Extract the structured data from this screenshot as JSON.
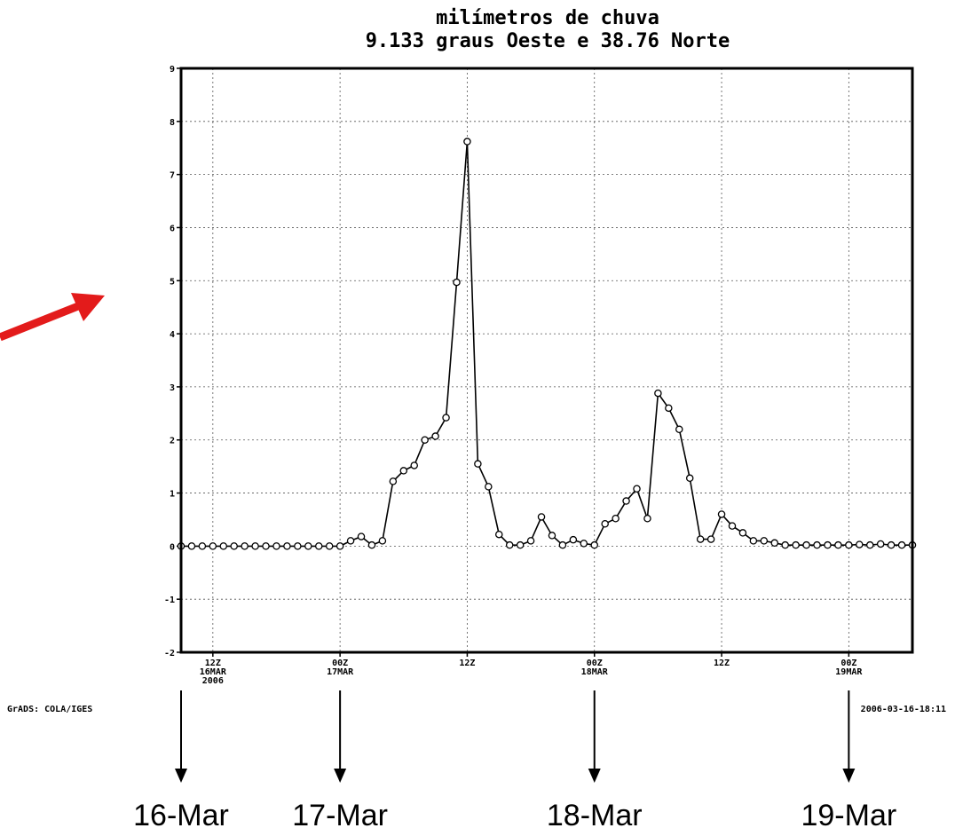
{
  "chart_data": {
    "type": "line",
    "title": [
      "milímetros de chuva",
      "9.133 graus Oeste  e  38.76 Norte"
    ],
    "ylim": [
      -2,
      9
    ],
    "yticks": [
      "-2",
      "-1",
      "0",
      "1",
      "2",
      "3",
      "4",
      "5",
      "6",
      "7",
      "8",
      "9"
    ],
    "xlim_hours": [
      -3,
      66
    ],
    "xticks": [
      {
        "hour": 0,
        "label": [
          "12Z",
          "16MAR",
          "2006"
        ]
      },
      {
        "hour": 12,
        "label": [
          "00Z",
          "17MAR"
        ]
      },
      {
        "hour": 24,
        "label": [
          "12Z"
        ]
      },
      {
        "hour": 36,
        "label": [
          "00Z",
          "18MAR"
        ]
      },
      {
        "hour": 48,
        "label": [
          "12Z"
        ]
      },
      {
        "hour": 60,
        "label": [
          "00Z",
          "19MAR"
        ]
      }
    ],
    "x_unit": "hours after 12Z 16MAR 2006",
    "grid": true,
    "series": [
      {
        "values": [
          [
            -3,
            0
          ],
          [
            -2,
            0
          ],
          [
            -1,
            0
          ],
          [
            0,
            0
          ],
          [
            1,
            0
          ],
          [
            2,
            0
          ],
          [
            3,
            0
          ],
          [
            4,
            0
          ],
          [
            5,
            0
          ],
          [
            6,
            0
          ],
          [
            7,
            0
          ],
          [
            8,
            0
          ],
          [
            9,
            0
          ],
          [
            10,
            0
          ],
          [
            11,
            0
          ],
          [
            12,
            0
          ],
          [
            13,
            0.1
          ],
          [
            14,
            0.18
          ],
          [
            15,
            0.02
          ],
          [
            16,
            0.1
          ],
          [
            17,
            1.22
          ],
          [
            18,
            1.42
          ],
          [
            19,
            1.52
          ],
          [
            20,
            2.0
          ],
          [
            21,
            2.07
          ],
          [
            22,
            2.42
          ],
          [
            23,
            4.97
          ],
          [
            24,
            7.62
          ],
          [
            25,
            1.55
          ],
          [
            26,
            1.12
          ],
          [
            27,
            0.22
          ],
          [
            28,
            0.02
          ],
          [
            29,
            0.02
          ],
          [
            30,
            0.1
          ],
          [
            31,
            0.55
          ],
          [
            32,
            0.2
          ],
          [
            33,
            0.02
          ],
          [
            34,
            0.12
          ],
          [
            35,
            0.05
          ],
          [
            36,
            0.02
          ],
          [
            37,
            0.42
          ],
          [
            38,
            0.52
          ],
          [
            39,
            0.85
          ],
          [
            40,
            1.08
          ],
          [
            41,
            0.52
          ],
          [
            42,
            2.88
          ],
          [
            43,
            2.6
          ],
          [
            44,
            2.2
          ],
          [
            45,
            1.28
          ],
          [
            46,
            0.13
          ],
          [
            47,
            0.13
          ],
          [
            48,
            0.6
          ],
          [
            49,
            0.38
          ],
          [
            50,
            0.25
          ],
          [
            51,
            0.1
          ],
          [
            52,
            0.1
          ],
          [
            53,
            0.06
          ],
          [
            54,
            0.02
          ],
          [
            55,
            0.02
          ],
          [
            56,
            0.02
          ],
          [
            57,
            0.02
          ],
          [
            58,
            0.02
          ],
          [
            59,
            0.02
          ],
          [
            60,
            0.02
          ],
          [
            61,
            0.03
          ],
          [
            62,
            0.02
          ],
          [
            63,
            0.04
          ],
          [
            64,
            0.02
          ],
          [
            65,
            0.02
          ],
          [
            66,
            0.02
          ]
        ]
      }
    ]
  },
  "footer": {
    "left": "GrADS: COLA/IGES",
    "right": "2006-03-16-18:11"
  },
  "date_labels": [
    {
      "hour": -3,
      "text": "16-Mar"
    },
    {
      "hour": 12,
      "text": "17-Mar"
    },
    {
      "hour": 36,
      "text": "18-Mar"
    },
    {
      "hour": 60,
      "text": "19-Mar"
    }
  ],
  "colors": {
    "arrow": "#e31b1b",
    "line": "#000000",
    "background": "#ffffff"
  }
}
